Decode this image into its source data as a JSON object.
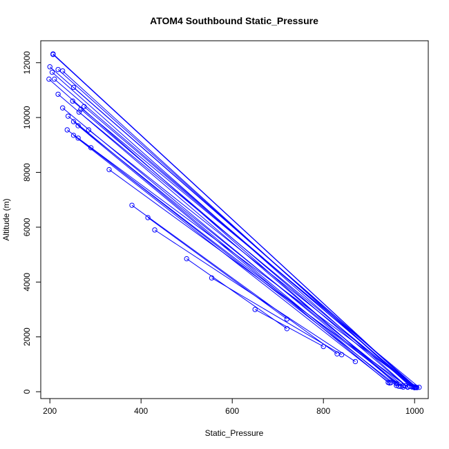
{
  "chart_data": {
    "type": "line",
    "title": "ATOM4 Southbound Static_Pressure",
    "xlabel": "Static_Pressure",
    "ylabel": "Altitude (m)",
    "xlim": [
      180,
      1030
    ],
    "ylim": [
      -250,
      12800
    ],
    "x_ticks": [
      200,
      400,
      600,
      800,
      1000
    ],
    "y_ticks": [
      0,
      2000,
      4000,
      6000,
      8000,
      10000,
      12000
    ],
    "x_tick_labels": [
      "200",
      "400",
      "600",
      "800",
      "1000"
    ],
    "y_tick_labels": [
      "0",
      "2000",
      "4000",
      "6000",
      "8000",
      "10000",
      "12000"
    ],
    "grid": false,
    "colors": {
      "series": "#0000ff",
      "axis": "#000000"
    },
    "marker": "open-circle",
    "series": [
      {
        "x": [
          207,
          1000
        ],
        "y": [
          12300,
          150
        ]
      },
      {
        "x": [
          207,
          1000
        ],
        "y": [
          12320,
          160
        ]
      },
      {
        "x": [
          218,
          995
        ],
        "y": [
          11750,
          170
        ]
      },
      {
        "x": [
          228,
          990
        ],
        "y": [
          11700,
          200
        ]
      },
      {
        "x": [
          200,
          1003
        ],
        "y": [
          11850,
          160
        ]
      },
      {
        "x": [
          210,
          998
        ],
        "y": [
          11400,
          180
        ]
      },
      {
        "x": [
          198,
          965
        ],
        "y": [
          11400,
          200
        ]
      },
      {
        "x": [
          205,
          985
        ],
        "y": [
          11650,
          165
        ]
      },
      {
        "x": [
          252,
          1005
        ],
        "y": [
          11100,
          150
        ]
      },
      {
        "x": [
          218,
          970
        ],
        "y": [
          10850,
          190
        ]
      },
      {
        "x": [
          250,
          1010
        ],
        "y": [
          10600,
          160
        ]
      },
      {
        "x": [
          275,
          1000
        ],
        "y": [
          10400,
          170
        ]
      },
      {
        "x": [
          228,
          960
        ],
        "y": [
          10350,
          300
        ]
      },
      {
        "x": [
          268,
          980
        ],
        "y": [
          10300,
          220
        ]
      },
      {
        "x": [
          264,
          995
        ],
        "y": [
          10200,
          180
        ]
      },
      {
        "x": [
          240,
          948
        ],
        "y": [
          10050,
          330
        ]
      },
      {
        "x": [
          252,
          975
        ],
        "y": [
          9850,
          220
        ]
      },
      {
        "x": [
          262,
          942
        ],
        "y": [
          9700,
          340
        ]
      },
      {
        "x": [
          285,
          1000
        ],
        "y": [
          9550,
          150
        ]
      },
      {
        "x": [
          238,
          975
        ],
        "y": [
          9550,
          170
        ]
      },
      {
        "x": [
          252,
          945
        ],
        "y": [
          9350,
          320
        ]
      },
      {
        "x": [
          262,
          1002
        ],
        "y": [
          9250,
          160
        ]
      },
      {
        "x": [
          290,
          960
        ],
        "y": [
          8900,
          230
        ]
      },
      {
        "x": [
          330,
          985
        ],
        "y": [
          8100,
          180
        ]
      },
      {
        "x": [
          380,
          830
        ],
        "y": [
          6800,
          1380
        ]
      },
      {
        "x": [
          430,
          870
        ],
        "y": [
          5900,
          1100
        ]
      },
      {
        "x": [
          500,
          720
        ],
        "y": [
          4850,
          2300
        ]
      },
      {
        "x": [
          555,
          840
        ],
        "y": [
          4150,
          1350
        ]
      },
      {
        "x": [
          650,
          800
        ],
        "y": [
          3000,
          1650
        ]
      },
      {
        "x": [
          415,
          720
        ],
        "y": [
          6350,
          2650
        ]
      }
    ]
  }
}
